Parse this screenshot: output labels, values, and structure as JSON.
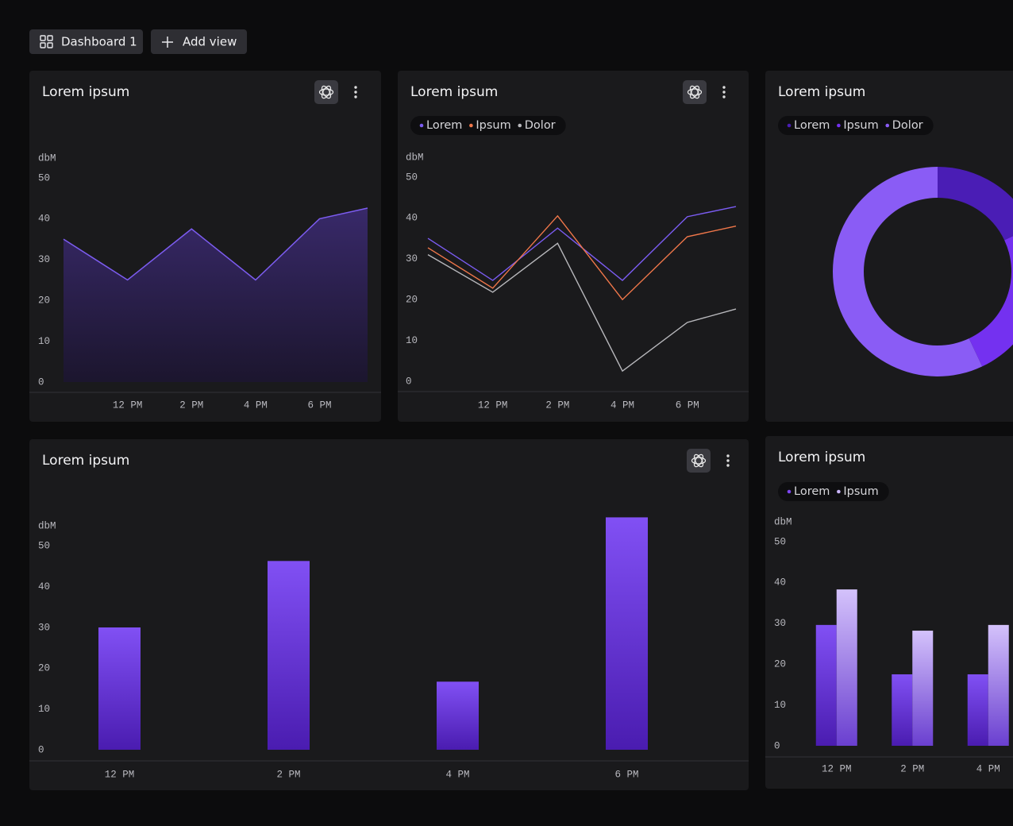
{
  "toolbar": {
    "tabs": [
      "Dashboard 1",
      "Add view"
    ]
  },
  "chart_data": [
    {
      "type": "area",
      "title": "Lorem ipsum",
      "y_label": "dbM",
      "x": [
        10,
        12,
        14,
        16,
        18,
        19.5
      ],
      "xlim": [
        10,
        19.5
      ],
      "xticks": [
        {
          "value": 12,
          "label": "12 PM"
        },
        {
          "value": 14,
          "label": "2 PM"
        },
        {
          "value": 16,
          "label": "4 PM"
        },
        {
          "value": 18,
          "label": "6 PM"
        }
      ],
      "values": [
        35,
        25,
        37.5,
        25,
        40,
        42.6
      ],
      "color": "#7c5cf0",
      "ylim": [
        0,
        50
      ],
      "yticks": [
        0,
        10,
        20,
        30,
        40,
        50
      ]
    },
    {
      "type": "line",
      "title": "Lorem ipsum",
      "y_label": "dbM",
      "x": [
        10,
        12,
        14,
        16,
        18,
        19.5
      ],
      "xlim": [
        10,
        19.5
      ],
      "xticks": [
        {
          "value": 12,
          "label": "12 PM"
        },
        {
          "value": 14,
          "label": "2 PM"
        },
        {
          "value": 16,
          "label": "4 PM"
        },
        {
          "value": 18,
          "label": "6 PM"
        }
      ],
      "series": [
        {
          "name": "Lorem",
          "color": "#7b5cf2",
          "values": [
            35,
            24.7,
            37.5,
            24.7,
            40.3,
            42.8
          ]
        },
        {
          "name": "Ipsum",
          "color": "#f0774a",
          "values": [
            32.7,
            22.8,
            40.5,
            20,
            35.4,
            38
          ]
        },
        {
          "name": "Dolor",
          "color": "#b8b8bc",
          "values": [
            31,
            21.8,
            33.8,
            2.5,
            14.4,
            17.7
          ]
        }
      ],
      "ylim": [
        0,
        50
      ],
      "yticks": [
        0,
        10,
        20,
        30,
        40,
        50
      ]
    },
    {
      "type": "pie",
      "title": "Lorem ipsum",
      "categories": [
        "Lorem",
        "Ipsum",
        "Dolor"
      ],
      "values": [
        18,
        25,
        57
      ],
      "colors": [
        "#4a1db5",
        "#7431f0",
        "#8a5cf5"
      ]
    },
    {
      "type": "bar",
      "title": "Lorem ipsum",
      "y_label": "dbM",
      "categories": [
        "12 PM",
        "2 PM",
        "4 PM",
        "6 PM"
      ],
      "values": [
        30,
        46.3,
        16.7,
        57
      ],
      "color": "#7c45f0",
      "ylim": [
        0,
        60
      ],
      "yticks": [
        0,
        10,
        20,
        30,
        40,
        50
      ]
    },
    {
      "type": "grouped-bar",
      "title": "Lorem ipsum",
      "y_label": "dbM",
      "categories": [
        "12 PM",
        "2 PM",
        "4 PM"
      ],
      "series": [
        {
          "name": "Lorem",
          "color": "#7c45f0",
          "values": [
            29.6,
            17.5,
            17.5
          ]
        },
        {
          "name": "Ipsum",
          "color": "#c9b5f9",
          "values": [
            38.3,
            28.2,
            29.6
          ]
        }
      ],
      "ylim": [
        0,
        50
      ],
      "yticks": [
        0,
        10,
        20,
        30,
        40,
        50
      ]
    }
  ]
}
